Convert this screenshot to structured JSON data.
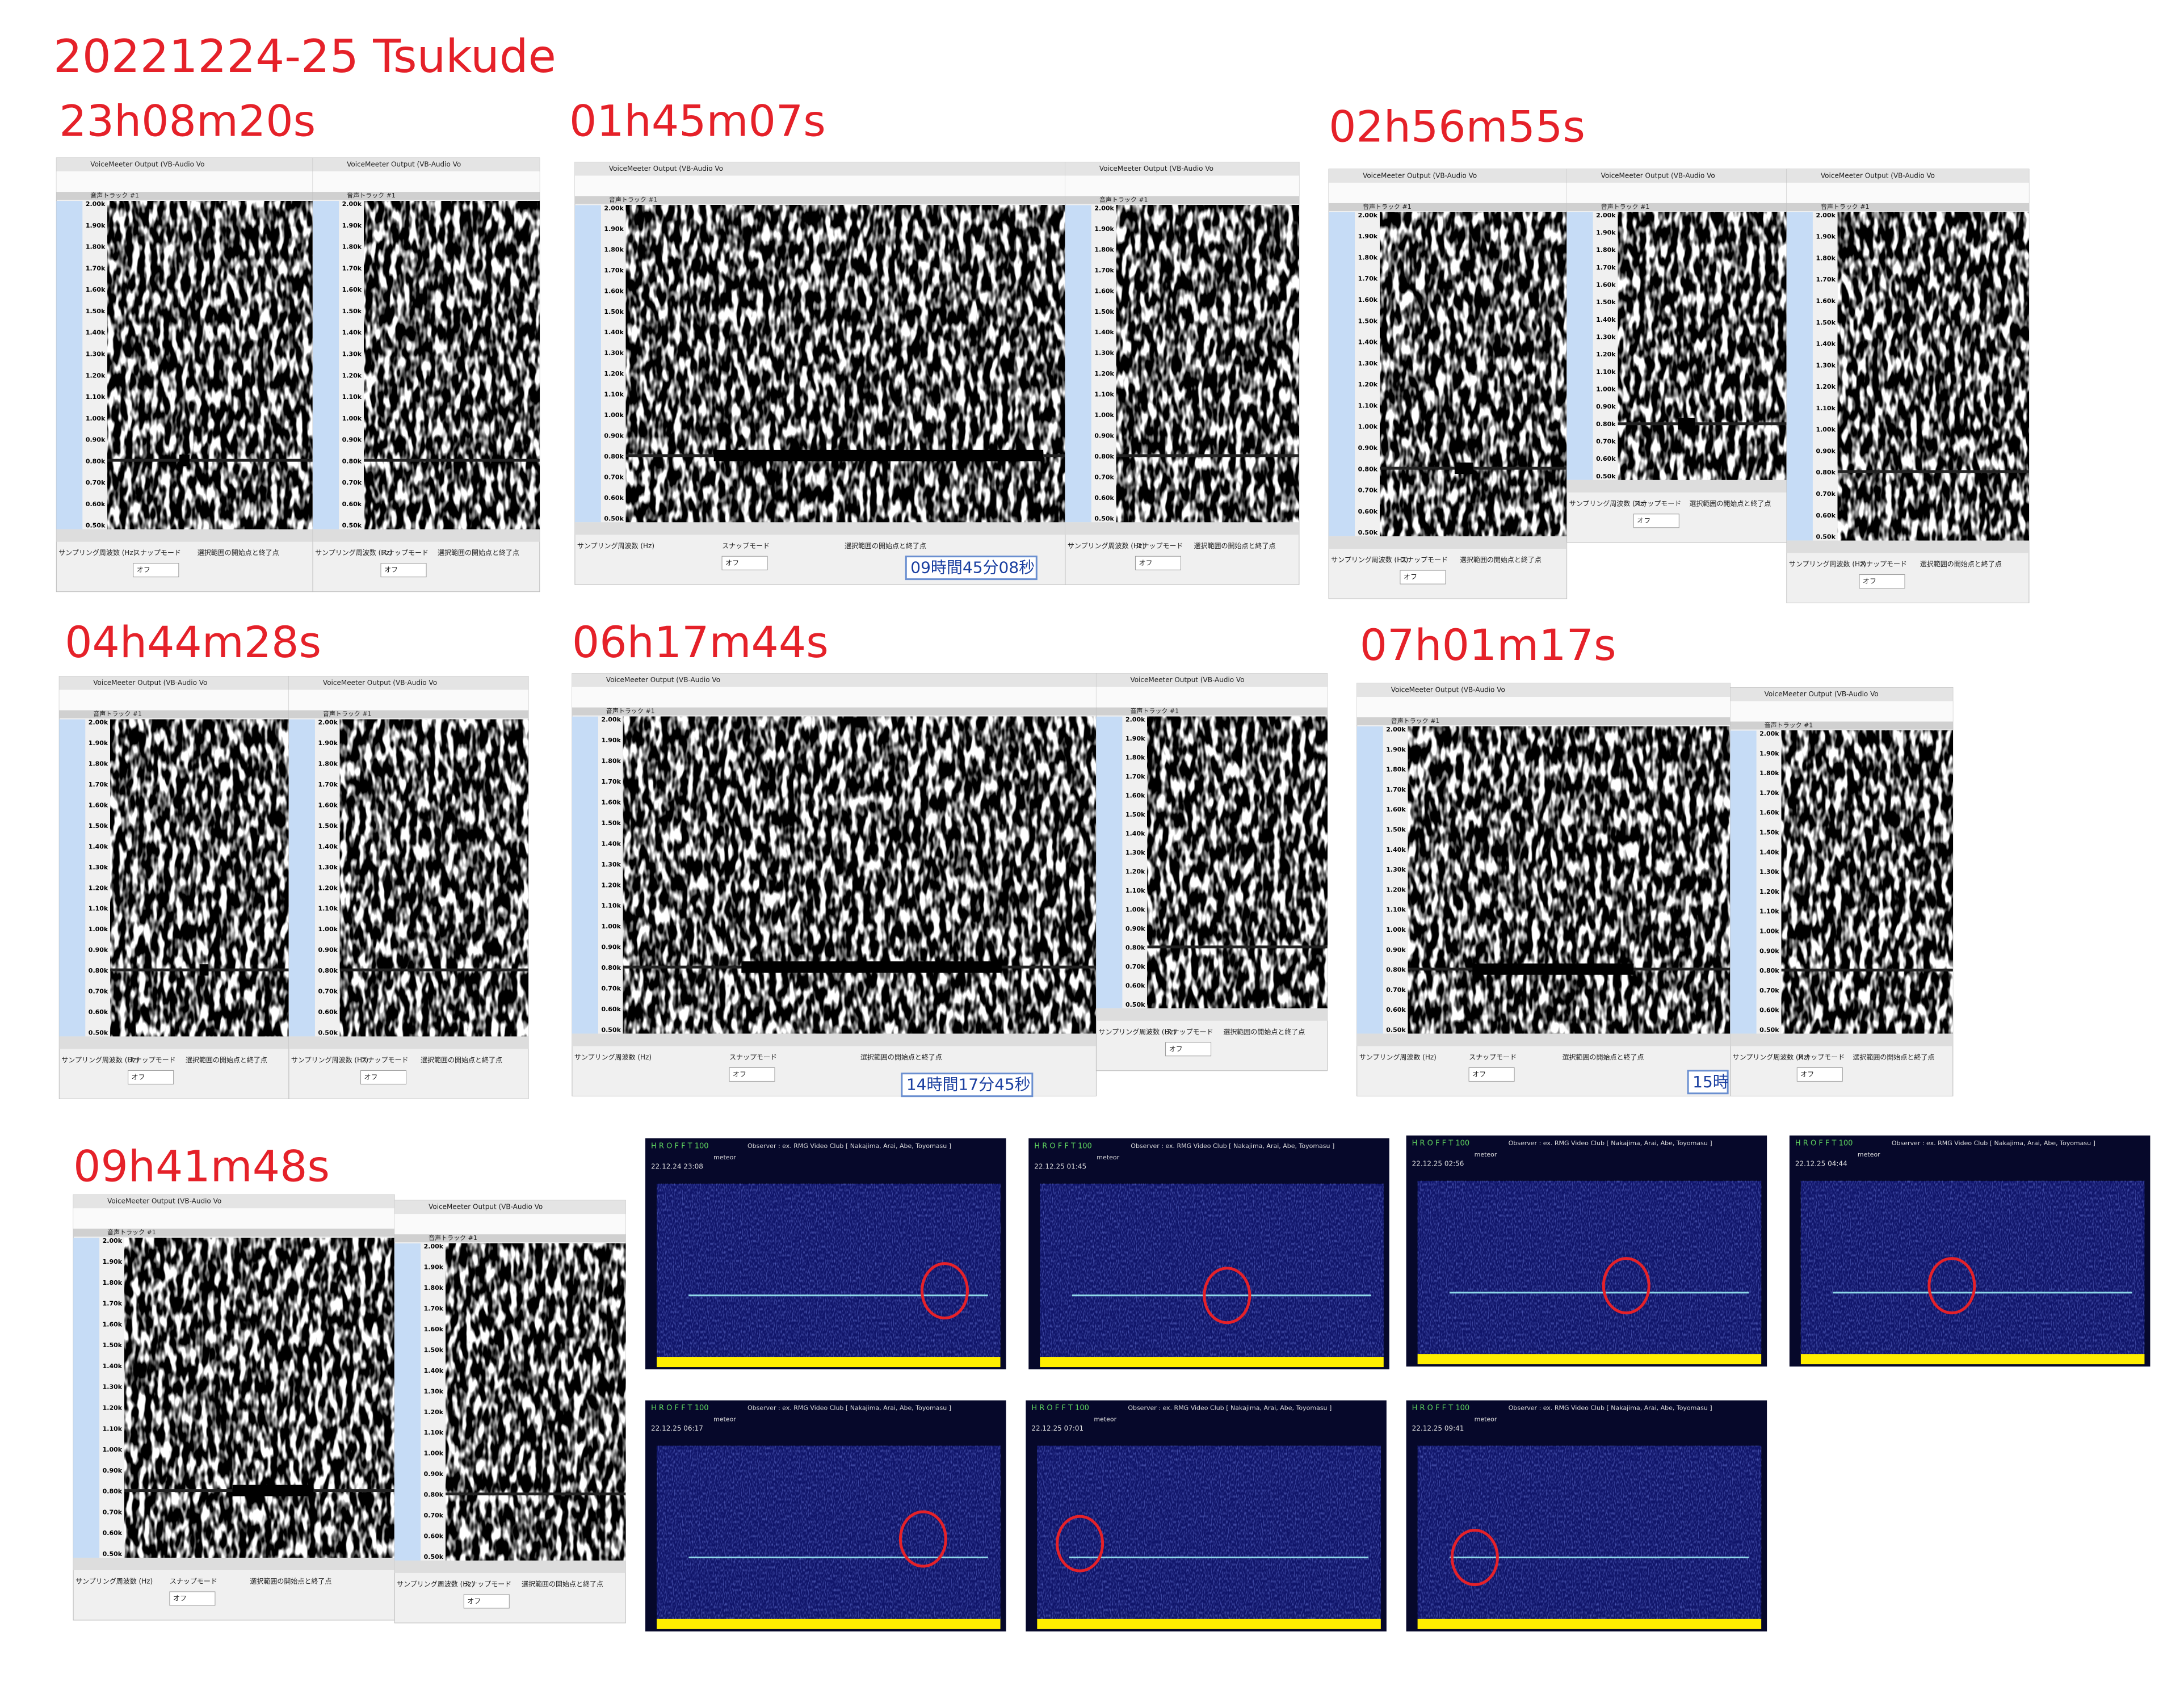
{
  "title": "20221224-25  Tsukude",
  "sections": [
    {
      "time": "23h08m20s"
    },
    {
      "time": "01h45m07s"
    },
    {
      "time": "02h56m55s"
    },
    {
      "time": "04h44m28s"
    },
    {
      "time": "06h17m44s"
    },
    {
      "time": "07h01m17s"
    },
    {
      "time": "09h41m48s"
    }
  ],
  "audacity": {
    "device": "VoiceMeeter Output (VB-Audio Vo",
    "track": "音声トラック #1",
    "yaxis": [
      "2.00k",
      "1.90k",
      "1.80k",
      "1.70k",
      "1.60k",
      "1.50k",
      "1.40k",
      "1.30k",
      "1.20k",
      "1.10k",
      "1.00k",
      "0.90k",
      "0.80k",
      "0.70k",
      "0.60k",
      "0.50k"
    ],
    "rate": "サンプリング周波数 (Hz)",
    "snap": "スナップモード",
    "selection": "選択範囲の開始点と終了点",
    "off": "オフ"
  },
  "time_readouts": [
    "09時間45分08秒",
    "14時間17分45秒",
    "15時"
  ],
  "hrofft": {
    "header": "H R O F F T 100",
    "observer": "Observer : ex. RMG Video Club [ Nakajima, Arai, Abe, Toyomasu ]",
    "detected": "meteor",
    "dates": [
      "22.12.24 23:08",
      "22.12.25 01:45",
      "22.12.25 02:56",
      "22.12.25 04:44",
      "22.12.25 06:17",
      "22.12.25 07:01",
      "22.12.25 09:41"
    ]
  }
}
